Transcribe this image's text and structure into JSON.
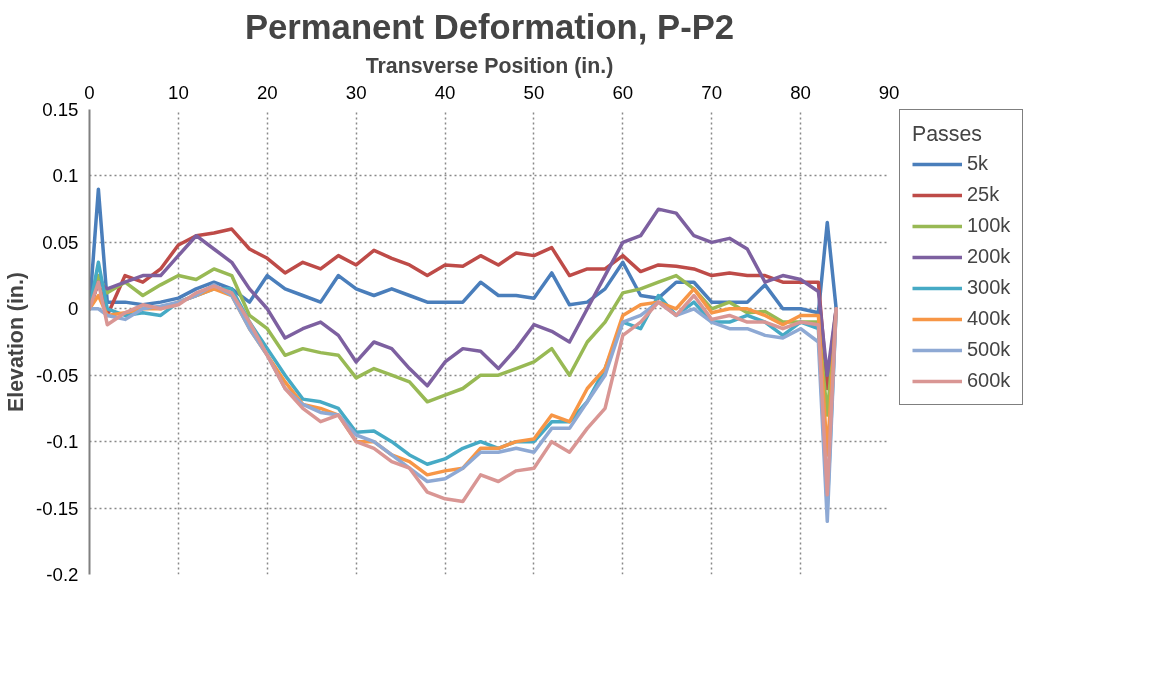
{
  "chart_data": {
    "type": "line",
    "title": "Permanent Deformation, P-P2",
    "xlabel": "Transverse Position (in.)",
    "ylabel": "Elevation (in.)",
    "legend_title": "Passes",
    "x": [
      0,
      1,
      2,
      4,
      6,
      8,
      10,
      12,
      14,
      16,
      18,
      20,
      22,
      24,
      26,
      28,
      30,
      32,
      34,
      36,
      38,
      40,
      42,
      44,
      46,
      48,
      50,
      52,
      54,
      56,
      58,
      60,
      62,
      64,
      66,
      68,
      70,
      72,
      74,
      76,
      78,
      80,
      82,
      83,
      84
    ],
    "series": [
      {
        "name": "5k",
        "color": "#4a7ebb",
        "values": [
          0.0,
          0.09,
          0.005,
          0.005,
          0.003,
          0.005,
          0.008,
          0.015,
          0.02,
          0.015,
          0.005,
          0.025,
          0.015,
          0.01,
          0.005,
          0.025,
          0.015,
          0.01,
          0.015,
          0.01,
          0.005,
          0.005,
          0.005,
          0.02,
          0.01,
          0.01,
          0.008,
          0.027,
          0.003,
          0.005,
          0.015,
          0.035,
          0.01,
          0.008,
          0.02,
          0.02,
          0.005,
          0.005,
          0.005,
          0.018,
          0.0,
          0.0,
          -0.003,
          0.065,
          0.0
        ]
      },
      {
        "name": "25k",
        "color": "#be4b48",
        "values": [
          0.0,
          0.02,
          -0.005,
          0.025,
          0.02,
          0.03,
          0.048,
          0.055,
          0.057,
          0.06,
          0.045,
          0.038,
          0.027,
          0.035,
          0.03,
          0.04,
          0.033,
          0.044,
          0.038,
          0.033,
          0.025,
          0.033,
          0.032,
          0.04,
          0.033,
          0.042,
          0.04,
          0.046,
          0.025,
          0.03,
          0.03,
          0.04,
          0.028,
          0.033,
          0.032,
          0.03,
          0.025,
          0.027,
          0.025,
          0.025,
          0.02,
          0.02,
          0.02,
          -0.06,
          0.0
        ]
      },
      {
        "name": "100k",
        "color": "#98b954",
        "values": [
          0.0,
          0.025,
          0.012,
          0.02,
          0.01,
          0.018,
          0.025,
          0.022,
          0.03,
          0.025,
          -0.005,
          -0.015,
          -0.035,
          -0.03,
          -0.033,
          -0.035,
          -0.052,
          -0.045,
          -0.05,
          -0.055,
          -0.07,
          -0.065,
          -0.06,
          -0.05,
          -0.05,
          -0.045,
          -0.04,
          -0.03,
          -0.05,
          -0.025,
          -0.01,
          0.012,
          0.015,
          0.02,
          0.025,
          0.015,
          0.0,
          0.005,
          -0.003,
          -0.002,
          -0.01,
          -0.01,
          -0.01,
          -0.08,
          0.0
        ]
      },
      {
        "name": "200k",
        "color": "#7d60a0",
        "values": [
          0.0,
          0.02,
          0.015,
          0.02,
          0.025,
          0.025,
          0.04,
          0.055,
          0.045,
          0.035,
          0.015,
          0.0,
          -0.022,
          -0.015,
          -0.01,
          -0.02,
          -0.04,
          -0.025,
          -0.03,
          -0.045,
          -0.058,
          -0.04,
          -0.03,
          -0.032,
          -0.045,
          -0.03,
          -0.012,
          -0.017,
          -0.025,
          0.0,
          0.025,
          0.05,
          0.055,
          0.075,
          0.072,
          0.055,
          0.05,
          0.053,
          0.045,
          0.02,
          0.025,
          0.022,
          0.013,
          -0.05,
          0.0
        ]
      },
      {
        "name": "300k",
        "color": "#46aac5",
        "values": [
          0.0,
          0.035,
          0.0,
          -0.005,
          -0.003,
          -0.005,
          0.005,
          0.01,
          0.015,
          0.015,
          -0.01,
          -0.03,
          -0.05,
          -0.068,
          -0.07,
          -0.075,
          -0.093,
          -0.092,
          -0.1,
          -0.11,
          -0.117,
          -0.113,
          -0.105,
          -0.1,
          -0.105,
          -0.1,
          -0.1,
          -0.085,
          -0.085,
          -0.07,
          -0.045,
          -0.01,
          -0.015,
          0.01,
          -0.005,
          0.005,
          -0.01,
          -0.01,
          -0.005,
          -0.01,
          -0.02,
          -0.01,
          -0.015,
          -0.15,
          0.0
        ]
      },
      {
        "name": "400k",
        "color": "#f79646",
        "values": [
          0.0,
          0.01,
          -0.005,
          -0.003,
          0.0,
          0.0,
          0.005,
          0.01,
          0.015,
          0.01,
          -0.015,
          -0.035,
          -0.055,
          -0.072,
          -0.075,
          -0.08,
          -0.1,
          -0.1,
          -0.11,
          -0.115,
          -0.125,
          -0.122,
          -0.12,
          -0.105,
          -0.105,
          -0.1,
          -0.098,
          -0.08,
          -0.085,
          -0.06,
          -0.045,
          -0.005,
          0.003,
          0.005,
          0.0,
          0.015,
          -0.003,
          0.0,
          0.0,
          -0.005,
          -0.012,
          -0.005,
          -0.005,
          -0.11,
          0.0
        ]
      },
      {
        "name": "500k",
        "color": "#8ea9d4",
        "values": [
          0.0,
          0.0,
          -0.005,
          -0.008,
          0.0,
          0.002,
          0.005,
          0.01,
          0.018,
          0.01,
          -0.015,
          -0.035,
          -0.06,
          -0.072,
          -0.078,
          -0.08,
          -0.095,
          -0.1,
          -0.11,
          -0.12,
          -0.13,
          -0.128,
          -0.12,
          -0.108,
          -0.108,
          -0.105,
          -0.108,
          -0.09,
          -0.09,
          -0.07,
          -0.05,
          -0.01,
          -0.005,
          0.005,
          -0.005,
          0.0,
          -0.01,
          -0.015,
          -0.015,
          -0.02,
          -0.022,
          -0.015,
          -0.025,
          -0.16,
          0.0
        ]
      },
      {
        "name": "600k",
        "color": "#d99694",
        "values": [
          0.0,
          0.02,
          -0.012,
          -0.003,
          0.003,
          0.0,
          0.003,
          0.012,
          0.017,
          0.012,
          -0.01,
          -0.035,
          -0.06,
          -0.075,
          -0.085,
          -0.08,
          -0.1,
          -0.105,
          -0.115,
          -0.12,
          -0.138,
          -0.143,
          -0.145,
          -0.125,
          -0.13,
          -0.122,
          -0.12,
          -0.1,
          -0.108,
          -0.09,
          -0.075,
          -0.02,
          -0.01,
          0.005,
          -0.005,
          0.01,
          -0.008,
          -0.005,
          -0.01,
          -0.01,
          -0.015,
          -0.01,
          -0.012,
          -0.14,
          0.0
        ]
      }
    ],
    "xlim": [
      0,
      90
    ],
    "xticks": [
      0,
      10,
      20,
      30,
      40,
      50,
      60,
      70,
      80,
      90
    ],
    "ylim": [
      -0.2,
      0.15
    ],
    "yticks": [
      -0.2,
      -0.15,
      -0.1,
      -0.05,
      0,
      0.05,
      0.1,
      0.15
    ],
    "grid": true,
    "legend": "right",
    "marker": "none",
    "line_style": "solid"
  }
}
